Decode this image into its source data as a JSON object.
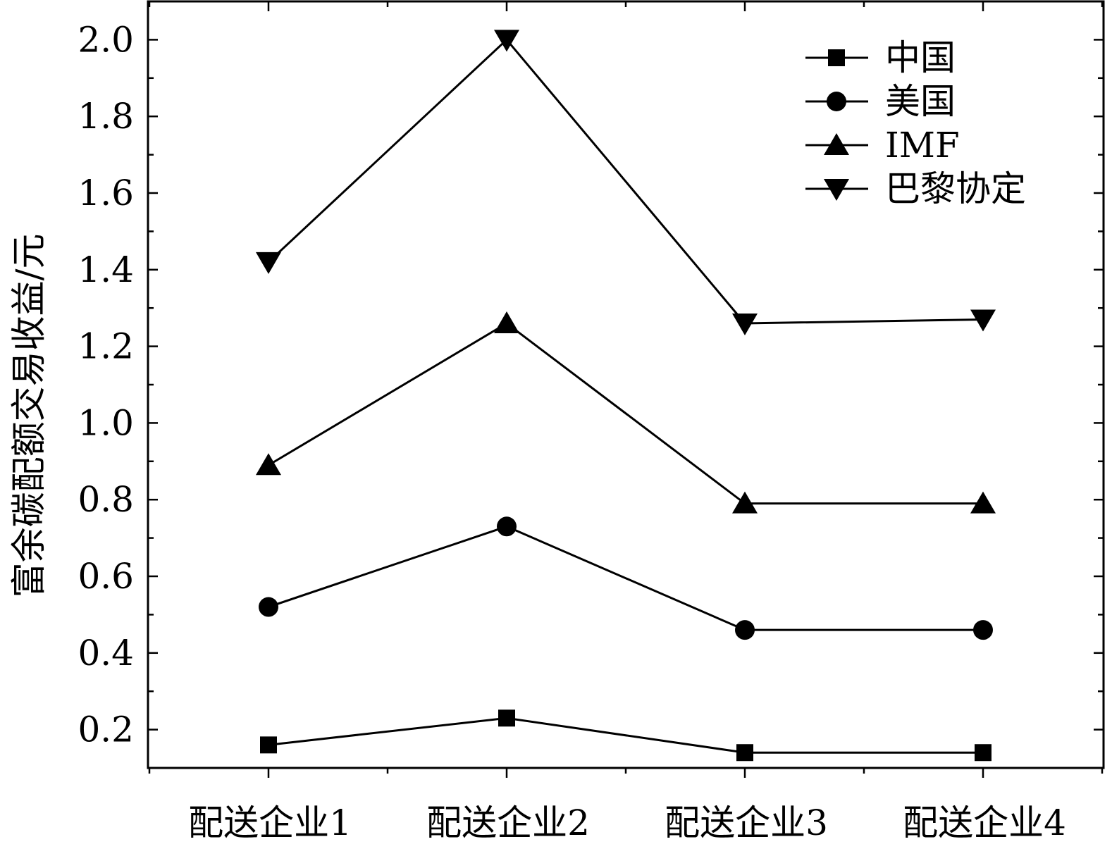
{
  "chart_data": {
    "type": "line",
    "title": "",
    "xlabel": "",
    "ylabel": "富余碳配额交易收益/元",
    "categories": [
      "配送企业1",
      "配送企业2",
      "配送企业3",
      "配送企业4"
    ],
    "ylim": [
      0.1,
      2.1
    ],
    "yticks": [
      0.2,
      0.4,
      0.6,
      0.8,
      1.0,
      1.2,
      1.4,
      1.6,
      1.8,
      2.0
    ],
    "ytick_labels": [
      "0.2",
      "0.4",
      "0.6",
      "0.8",
      "1.0",
      "1.2",
      "1.4",
      "1.6",
      "1.8",
      "2.0"
    ],
    "grid": false,
    "legend_position": "top-right",
    "series": [
      {
        "name": "中国",
        "marker": "square",
        "values": [
          0.16,
          0.23,
          0.14,
          0.14
        ]
      },
      {
        "name": "美国",
        "marker": "circle",
        "values": [
          0.52,
          0.73,
          0.46,
          0.46
        ]
      },
      {
        "name": "IMF",
        "marker": "triangle-up",
        "values": [
          0.89,
          1.26,
          0.79,
          0.79
        ]
      },
      {
        "name": "巴黎协定",
        "marker": "triangle-down",
        "values": [
          1.42,
          2.0,
          1.26,
          1.27
        ]
      }
    ],
    "line_color": "#000000"
  }
}
